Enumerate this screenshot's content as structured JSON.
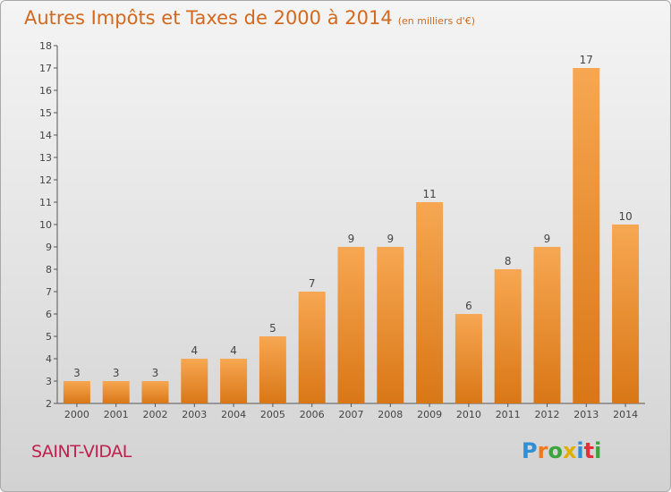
{
  "title": {
    "main": "Autres Impôts et Taxes de 2000 à 2014",
    "unit": "(en milliers d'€)"
  },
  "commune": "SAINT-VIDAL",
  "logo": {
    "text": "Proxiti",
    "letters": [
      {
        "ch": "P",
        "color": "#2e8fd6"
      },
      {
        "ch": "r",
        "color": "#f07a1a"
      },
      {
        "ch": "o",
        "color": "#3aa63a"
      },
      {
        "ch": "x",
        "color": "#e0b000"
      },
      {
        "ch": "i",
        "color": "#2e8fd6"
      },
      {
        "ch": "t",
        "color": "#e0303a"
      },
      {
        "ch": "i",
        "color": "#3aa63a"
      }
    ]
  },
  "colors": {
    "bar_top": "#f7a752",
    "bar_bottom": "#d97716",
    "title": "#d2691e",
    "commune": "#c0204d"
  },
  "chart_data": {
    "type": "bar",
    "categories": [
      "2000",
      "2001",
      "2002",
      "2003",
      "2004",
      "2005",
      "2006",
      "2007",
      "2008",
      "2009",
      "2010",
      "2011",
      "2012",
      "2013",
      "2014"
    ],
    "values": [
      3,
      3,
      3,
      4,
      4,
      5,
      7,
      9,
      9,
      11,
      6,
      8,
      9,
      17,
      10
    ],
    "ylim": [
      2,
      18
    ],
    "yticks": [
      2,
      3,
      4,
      5,
      6,
      7,
      8,
      9,
      10,
      11,
      12,
      13,
      14,
      15,
      16,
      17,
      18
    ],
    "grid": false,
    "legend": "none"
  }
}
